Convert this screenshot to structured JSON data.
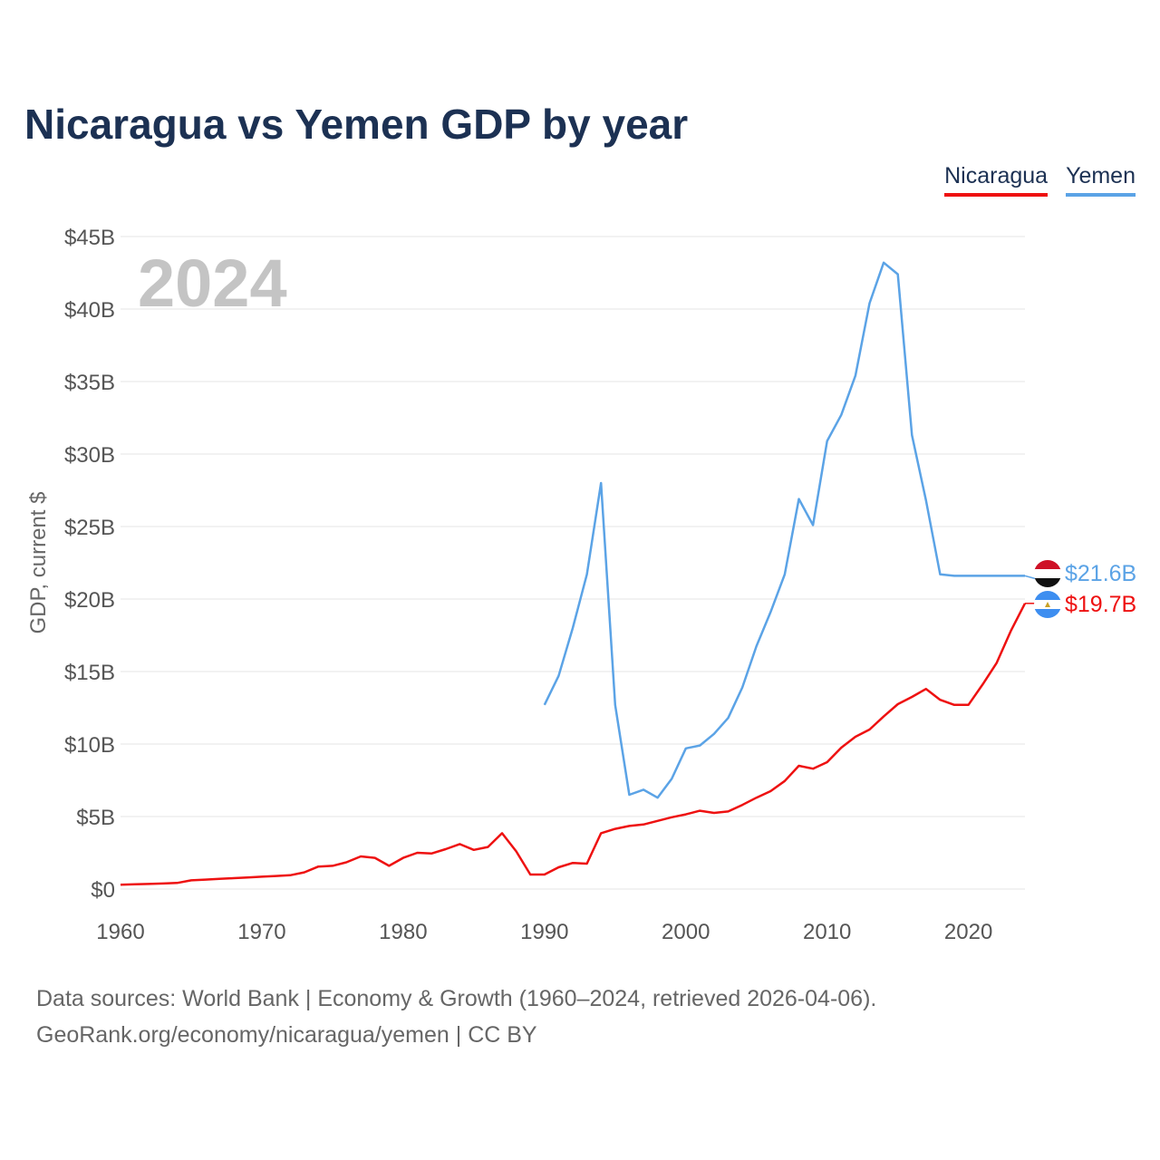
{
  "title": "Nicaragua vs Yemen GDP by year",
  "year_label": "2024",
  "legend": [
    {
      "name": "Nicaragua",
      "color": "#ee1111"
    },
    {
      "name": "Yemen",
      "color": "#5ba3e6"
    }
  ],
  "source_line1": "Data sources: World Bank | Economy & Growth (1960–2024, retrieved 2026-04-06).",
  "source_line2": "GeoRank.org/economy/nicaragua/yemen | CC BY",
  "chart_data": {
    "type": "line",
    "title": "Nicaragua vs Yemen GDP by year",
    "xlabel": "",
    "ylabel": "GDP, current $",
    "xlim": [
      1960,
      2024
    ],
    "ylim": [
      0,
      45
    ],
    "unit": "billion USD",
    "x_ticks": [
      1960,
      1970,
      1980,
      1990,
      2000,
      2010,
      2020
    ],
    "y_ticks": [
      0,
      5,
      10,
      15,
      20,
      25,
      30,
      35,
      40,
      45
    ],
    "y_tick_labels": [
      "$0",
      "$5B",
      "$10B",
      "$15B",
      "$20B",
      "$25B",
      "$30B",
      "$35B",
      "$40B",
      "$45B"
    ],
    "grid": true,
    "series": [
      {
        "name": "Nicaragua",
        "color": "#ee1111",
        "end_label": "$19.7B",
        "flag": "nicaragua",
        "x": [
          1960,
          1961,
          1962,
          1963,
          1964,
          1965,
          1966,
          1967,
          1968,
          1969,
          1970,
          1971,
          1972,
          1973,
          1974,
          1975,
          1976,
          1977,
          1978,
          1979,
          1980,
          1981,
          1982,
          1983,
          1984,
          1985,
          1986,
          1987,
          1988,
          1989,
          1990,
          1991,
          1992,
          1993,
          1994,
          1995,
          1996,
          1997,
          1998,
          1999,
          2000,
          2001,
          2002,
          2003,
          2004,
          2005,
          2006,
          2007,
          2008,
          2009,
          2010,
          2011,
          2012,
          2013,
          2014,
          2015,
          2016,
          2017,
          2018,
          2019,
          2020,
          2021,
          2022,
          2023,
          2024
        ],
        "values": [
          0.3,
          0.33,
          0.35,
          0.38,
          0.42,
          0.6,
          0.65,
          0.7,
          0.75,
          0.8,
          0.85,
          0.9,
          0.95,
          1.15,
          1.55,
          1.6,
          1.85,
          2.25,
          2.15,
          1.6,
          2.15,
          2.5,
          2.45,
          2.75,
          3.1,
          2.7,
          2.9,
          3.85,
          2.6,
          1.0,
          1.0,
          1.5,
          1.8,
          1.75,
          3.85,
          4.15,
          4.35,
          4.45,
          4.7,
          4.95,
          5.15,
          5.4,
          5.25,
          5.35,
          5.8,
          6.3,
          6.75,
          7.45,
          8.5,
          8.3,
          8.75,
          9.75,
          10.5,
          11.0,
          11.9,
          12.75,
          13.25,
          13.8,
          13.05,
          12.7,
          12.7,
          14.1,
          15.6,
          17.8,
          19.7
        ]
      },
      {
        "name": "Yemen",
        "color": "#5ba3e6",
        "end_label": "$21.6B",
        "flag": "yemen",
        "x": [
          1990,
          1991,
          1992,
          1993,
          1994,
          1995,
          1996,
          1997,
          1998,
          1999,
          2000,
          2001,
          2002,
          2003,
          2004,
          2005,
          2006,
          2007,
          2008,
          2009,
          2010,
          2011,
          2012,
          2013,
          2014,
          2015,
          2016,
          2017,
          2018,
          2019,
          2020,
          2021,
          2022,
          2023,
          2024
        ],
        "values": [
          12.7,
          14.7,
          18.0,
          21.7,
          28.0,
          12.7,
          6.5,
          6.85,
          6.3,
          7.6,
          9.7,
          9.9,
          10.7,
          11.8,
          13.9,
          16.75,
          19.1,
          21.7,
          26.9,
          25.1,
          30.9,
          32.7,
          35.4,
          40.4,
          43.2,
          42.4,
          31.3,
          26.8,
          21.7,
          21.6,
          21.6,
          21.6,
          21.6,
          21.6,
          21.6
        ]
      }
    ]
  }
}
